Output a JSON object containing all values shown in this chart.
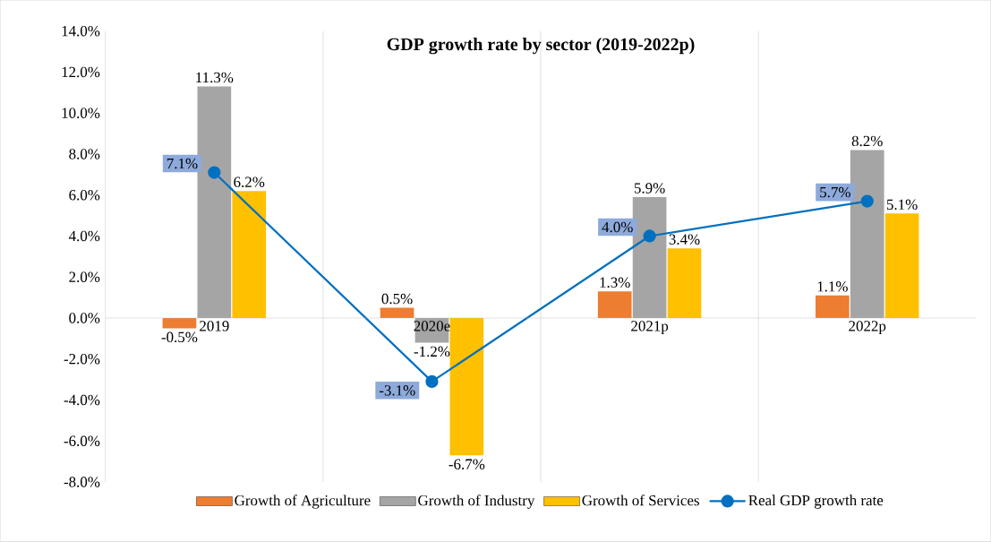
{
  "chart_data": {
    "type": "bar",
    "title": "GDP growth rate by sector (2019-2022p)",
    "categories": [
      "2019",
      "2020e",
      "2021p",
      "2022p"
    ],
    "series": [
      {
        "name": "Growth of Agriculture",
        "color": "#ed7d31",
        "values": [
          -0.5,
          0.5,
          1.3,
          1.1
        ],
        "value_labels": [
          "-0.5%",
          "0.5%",
          "1.3%",
          "1.1%"
        ]
      },
      {
        "name": "Growth of Industry",
        "color": "#a5a5a5",
        "values": [
          11.3,
          -1.2,
          5.9,
          8.2
        ],
        "value_labels": [
          "11.3%",
          "-1.2%",
          "5.9%",
          "8.2%"
        ]
      },
      {
        "name": "Growth of Services",
        "color": "#ffc000",
        "values": [
          6.2,
          -6.7,
          3.4,
          5.1
        ],
        "value_labels": [
          "6.2%",
          "-6.7%",
          "3.4%",
          "5.1%"
        ]
      },
      {
        "name": "Real GDP growth rate",
        "type": "line",
        "color": "#0070c0",
        "values": [
          7.1,
          -3.1,
          4.0,
          5.7
        ],
        "value_labels": [
          "7.1%",
          "-3.1%",
          "4.0%",
          "5.7%"
        ],
        "marker": "circle"
      }
    ],
    "ylim": [
      -8,
      14
    ],
    "yticks": [
      {
        "value": -8,
        "label": "-8.0%"
      },
      {
        "value": -6,
        "label": "-6.0%"
      },
      {
        "value": -4,
        "label": "-4.0%"
      },
      {
        "value": -2,
        "label": "-2.0%"
      },
      {
        "value": 0,
        "label": "0.0%"
      },
      {
        "value": 2,
        "label": "2.0%"
      },
      {
        "value": 4,
        "label": "4.0%"
      },
      {
        "value": 6,
        "label": "6.0%"
      },
      {
        "value": 8,
        "label": "8.0%"
      },
      {
        "value": 10,
        "label": "10.0%"
      },
      {
        "value": 12,
        "label": "12.0%"
      },
      {
        "value": 14,
        "label": "14.0%"
      }
    ],
    "grid": "x",
    "legend": "bottom"
  }
}
